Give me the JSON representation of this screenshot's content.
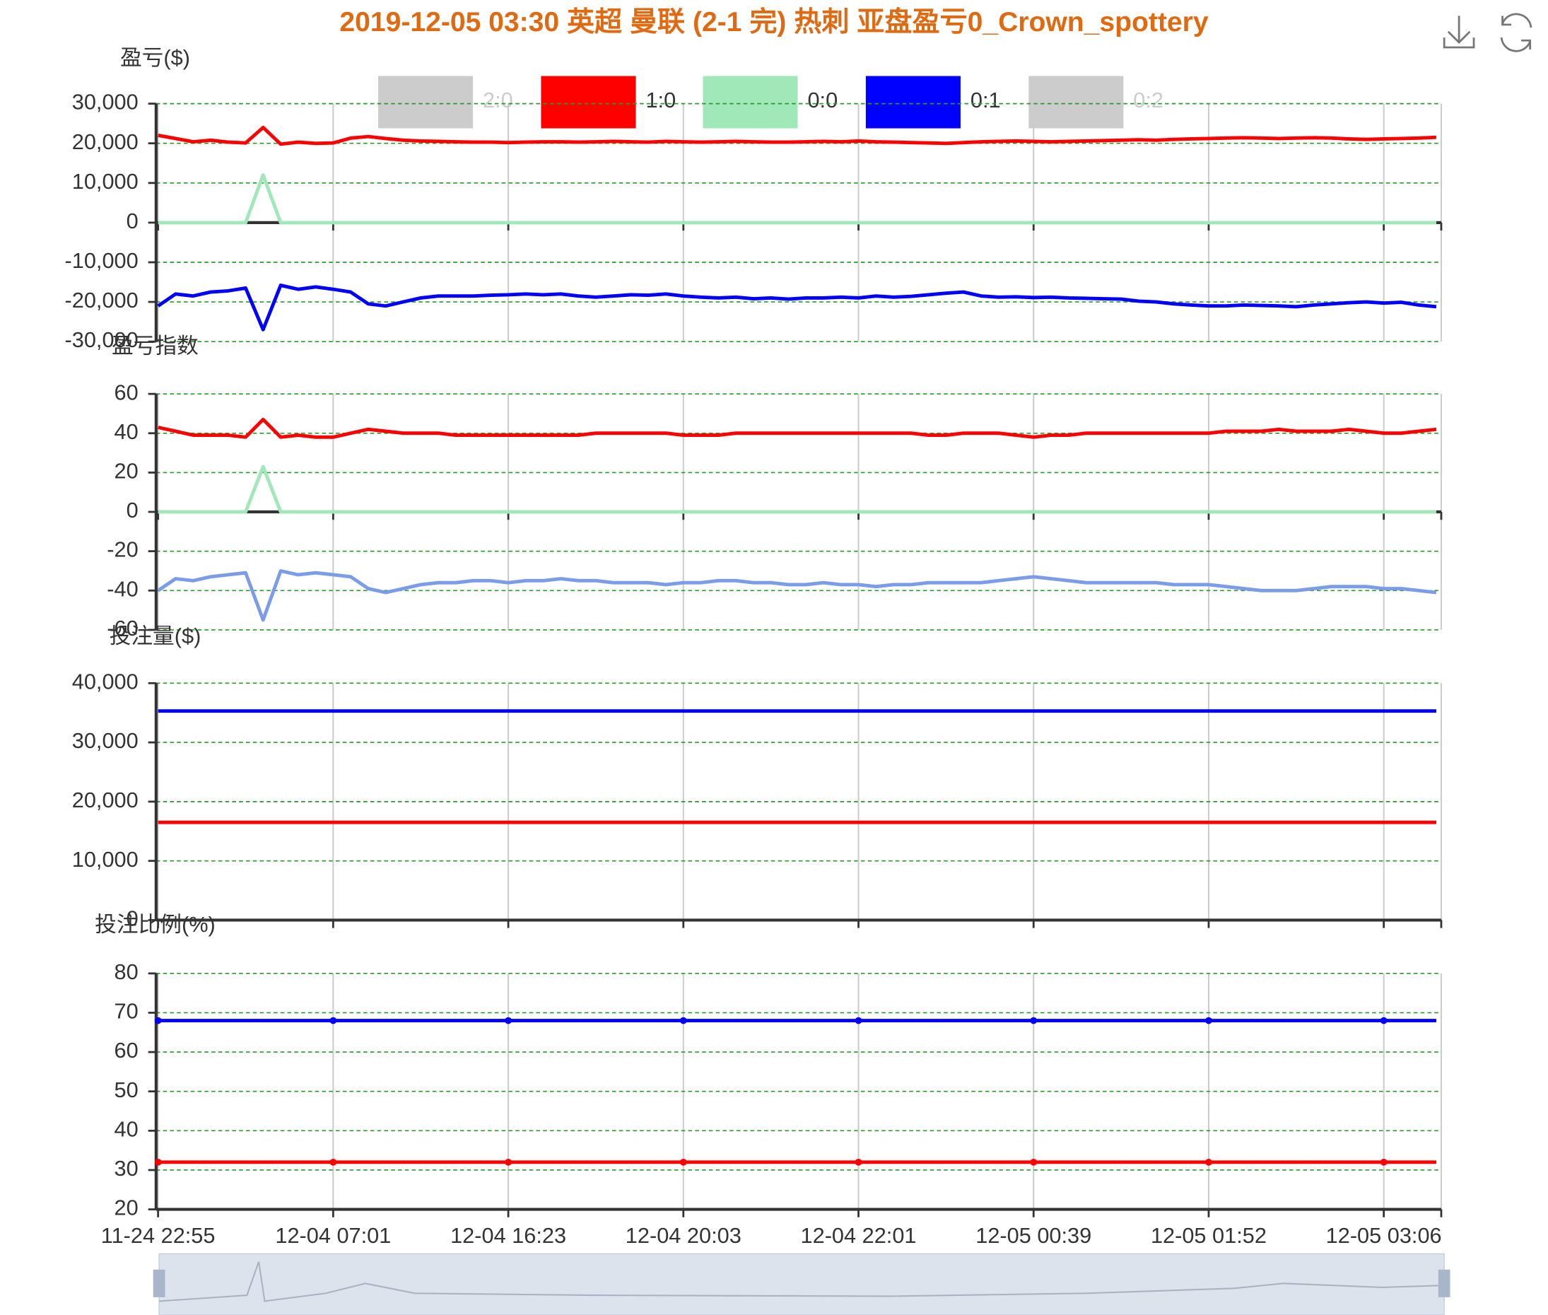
{
  "title": "2019-12-05 03:30 英超 曼联 (2-1 完) 热刺 亚盘盈亏0_Crown_spottery",
  "legend": [
    {
      "name": "2:0",
      "color": "#cccccc",
      "active": false
    },
    {
      "name": "1:0",
      "color": "#ff0000",
      "active": true
    },
    {
      "name": "0:0",
      "color": "#a1e8b9",
      "active": true
    },
    {
      "name": "0:1",
      "color": "#0000ff",
      "active": true
    },
    {
      "name": "0:2",
      "color": "#cccccc",
      "active": false
    }
  ],
  "categories": [
    "11-24 22:55",
    null,
    null,
    null,
    null,
    null,
    null,
    null,
    null,
    null,
    "12-04 07:01",
    null,
    null,
    null,
    null,
    null,
    null,
    null,
    null,
    null,
    "12-04 16:23",
    null,
    null,
    null,
    null,
    null,
    null,
    null,
    null,
    null,
    "12-04 20:03",
    null,
    null,
    null,
    null,
    null,
    null,
    null,
    null,
    null,
    "12-04 22:01",
    null,
    null,
    null,
    null,
    null,
    null,
    null,
    null,
    null,
    "12-05 00:39",
    null,
    null,
    null,
    null,
    null,
    null,
    null,
    null,
    null,
    "12-05 01:52",
    null,
    null,
    null,
    null,
    null,
    null,
    null,
    null,
    null,
    "12-05 03:06",
    null,
    null,
    null
  ],
  "chart_data": [
    {
      "type": "line",
      "ylabel": "盈亏($)",
      "ylim": [
        -30000,
        30000
      ],
      "grid": true,
      "yticks": [
        {
          "value": -30000,
          "label": "-30,000"
        },
        {
          "value": -20000,
          "label": "-20,000"
        },
        {
          "value": -10000,
          "label": "-10,000"
        },
        0,
        {
          "value": 10000,
          "label": "10,000"
        },
        {
          "value": 20000,
          "label": "20,000"
        },
        {
          "value": 30000,
          "label": "30,000"
        }
      ],
      "series": [
        {
          "color": "#ff0000",
          "values": [
            22000,
            21200,
            20400,
            20800,
            20300,
            20100,
            24000,
            19800,
            20300,
            20000,
            20100,
            21300,
            21700,
            21200,
            20800,
            20600,
            20500,
            20400,
            20300,
            20300,
            20200,
            20300,
            20400,
            20400,
            20300,
            20400,
            20500,
            20400,
            20300,
            20500,
            20400,
            20300,
            20400,
            20500,
            20400,
            20300,
            20300,
            20400,
            20500,
            20400,
            20600,
            20400,
            20300,
            20200,
            20100,
            20000,
            20200,
            20400,
            20500,
            20600,
            20500,
            20400,
            20500,
            20600,
            20700,
            20800,
            20900,
            20800,
            21000,
            21100,
            21200,
            21300,
            21400,
            21300,
            21200,
            21300,
            21400,
            21300,
            21100,
            21000,
            21100,
            21200,
            21300,
            21500
          ]
        },
        {
          "color": "#a1e8b9",
          "values": [
            0,
            0,
            0,
            0,
            0,
            0,
            12000,
            0,
            0,
            0,
            0,
            0,
            0,
            0,
            0,
            0,
            0,
            0,
            0,
            0,
            0,
            0,
            0,
            0,
            0,
            0,
            0,
            0,
            0,
            0,
            0,
            0,
            0,
            0,
            0,
            0,
            0,
            0,
            0,
            0,
            0,
            0,
            0,
            0,
            0,
            0,
            0,
            0,
            0,
            0,
            0,
            0,
            0,
            0,
            0,
            0,
            0,
            0,
            0,
            0,
            0,
            0,
            0,
            0,
            0,
            0,
            0,
            0,
            0,
            0,
            0,
            0,
            0,
            0
          ]
        },
        {
          "color": "#0000ff",
          "values": [
            -21000,
            -18000,
            -18500,
            -17500,
            -17200,
            -16500,
            -27000,
            -15800,
            -16800,
            -16200,
            -16800,
            -17500,
            -20500,
            -21000,
            -20000,
            -19000,
            -18500,
            -18500,
            -18500,
            -18300,
            -18200,
            -18000,
            -18200,
            -18000,
            -18500,
            -18800,
            -18500,
            -18200,
            -18300,
            -18000,
            -18500,
            -18800,
            -19000,
            -18800,
            -19200,
            -19000,
            -19300,
            -19000,
            -19000,
            -18800,
            -19000,
            -18500,
            -18800,
            -18600,
            -18200,
            -17800,
            -17500,
            -18500,
            -18800,
            -18700,
            -18900,
            -18800,
            -19000,
            -19100,
            -19200,
            -19300,
            -19800,
            -20000,
            -20500,
            -20800,
            -21000,
            -21000,
            -20800,
            -20900,
            -21000,
            -21200,
            -20800,
            -20500,
            -20200,
            -20000,
            -20300,
            -20100,
            -20800,
            -21200
          ]
        }
      ]
    },
    {
      "type": "line",
      "ylabel": "盈亏指数",
      "ylim": [
        -60,
        60
      ],
      "grid": true,
      "yticks": [
        -60,
        -40,
        -20,
        0,
        20,
        40,
        60
      ],
      "series": [
        {
          "color": "#ff0000",
          "values": [
            43,
            41,
            39,
            39,
            39,
            38,
            47,
            38,
            39,
            38,
            38,
            40,
            42,
            41,
            40,
            40,
            40,
            39,
            39,
            39,
            39,
            39,
            39,
            39,
            39,
            40,
            40,
            40,
            40,
            40,
            39,
            39,
            39,
            40,
            40,
            40,
            40,
            40,
            40,
            40,
            40,
            40,
            40,
            40,
            39,
            39,
            40,
            40,
            40,
            39,
            38,
            39,
            39,
            40,
            40,
            40,
            40,
            40,
            40,
            40,
            40,
            41,
            41,
            41,
            42,
            41,
            41,
            41,
            42,
            41,
            40,
            40,
            41,
            42
          ]
        },
        {
          "color": "#a1e8b9",
          "values": [
            0,
            0,
            0,
            0,
            0,
            0,
            23,
            0,
            0,
            0,
            0,
            0,
            0,
            0,
            0,
            0,
            0,
            0,
            0,
            0,
            0,
            0,
            0,
            0,
            0,
            0,
            0,
            0,
            0,
            0,
            0,
            0,
            0,
            0,
            0,
            0,
            0,
            0,
            0,
            0,
            0,
            0,
            0,
            0,
            0,
            0,
            0,
            0,
            0,
            0,
            0,
            0,
            0,
            0,
            0,
            0,
            0,
            0,
            0,
            0,
            0,
            0,
            0,
            0,
            0,
            0,
            0,
            0,
            0,
            0,
            0,
            0,
            0,
            0
          ]
        },
        {
          "color": "#7b9ce8",
          "values": [
            -40,
            -34,
            -35,
            -33,
            -32,
            -31,
            -55,
            -30,
            -32,
            -31,
            -32,
            -33,
            -39,
            -41,
            -39,
            -37,
            -36,
            -36,
            -35,
            -35,
            -36,
            -35,
            -35,
            -34,
            -35,
            -35,
            -36,
            -36,
            -36,
            -37,
            -36,
            -36,
            -35,
            -35,
            -36,
            -36,
            -37,
            -37,
            -36,
            -37,
            -37,
            -38,
            -37,
            -37,
            -36,
            -36,
            -36,
            -36,
            -35,
            -34,
            -33,
            -34,
            -35,
            -36,
            -36,
            -36,
            -36,
            -36,
            -37,
            -37,
            -37,
            -38,
            -39,
            -40,
            -40,
            -40,
            -39,
            -38,
            -38,
            -38,
            -39,
            -39,
            -40,
            -41
          ]
        }
      ]
    },
    {
      "type": "line",
      "ylabel": "投注量($)",
      "ylim": [
        0,
        40000
      ],
      "grid": true,
      "yticks": [
        0,
        {
          "value": 10000,
          "label": "10,000"
        },
        {
          "value": 20000,
          "label": "20,000"
        },
        {
          "value": 30000,
          "label": "30,000"
        },
        {
          "value": 40000,
          "label": "40,000"
        }
      ],
      "series": [
        {
          "color": "#ff0000",
          "values": [
            16500,
            16500,
            16500,
            16500,
            16500,
            16500,
            16500,
            16500,
            16500,
            16500,
            16500,
            16500,
            16500,
            16500,
            16500,
            16500,
            16500,
            16500,
            16500,
            16500,
            16500,
            16500,
            16500,
            16500,
            16500,
            16500,
            16500,
            16500,
            16500,
            16500,
            16500,
            16500,
            16500,
            16500,
            16500,
            16500,
            16500,
            16500,
            16500,
            16500,
            16500,
            16500,
            16500,
            16500,
            16500,
            16500,
            16500,
            16500,
            16500,
            16500,
            16500,
            16500,
            16500,
            16500,
            16500,
            16500,
            16500,
            16500,
            16500,
            16500,
            16500,
            16500,
            16500,
            16500,
            16500,
            16500,
            16500,
            16500,
            16500,
            16500,
            16500,
            16500,
            16500,
            16500
          ]
        },
        {
          "color": "#0000ff",
          "values": [
            35300,
            35300,
            35300,
            35300,
            35300,
            35300,
            35300,
            35300,
            35300,
            35300,
            35300,
            35300,
            35300,
            35300,
            35300,
            35300,
            35300,
            35300,
            35300,
            35300,
            35300,
            35300,
            35300,
            35300,
            35300,
            35300,
            35300,
            35300,
            35300,
            35300,
            35300,
            35300,
            35300,
            35300,
            35300,
            35300,
            35300,
            35300,
            35300,
            35300,
            35300,
            35300,
            35300,
            35300,
            35300,
            35300,
            35300,
            35300,
            35300,
            35300,
            35300,
            35300,
            35300,
            35300,
            35300,
            35300,
            35300,
            35300,
            35300,
            35300,
            35300,
            35300,
            35300,
            35300,
            35300,
            35300,
            35300,
            35300,
            35300,
            35300,
            35300,
            35300,
            35300,
            35300
          ]
        }
      ]
    },
    {
      "type": "line",
      "ylabel": "投注比例(%)",
      "ylim": [
        20,
        80
      ],
      "grid": true,
      "markers": true,
      "yticks": [
        20,
        30,
        40,
        50,
        60,
        70,
        80
      ],
      "series": [
        {
          "color": "#ff0000",
          "values": [
            32,
            32,
            32,
            32,
            32,
            32,
            32,
            32,
            32,
            32,
            32,
            32,
            32,
            32,
            32,
            32,
            32,
            32,
            32,
            32,
            32,
            32,
            32,
            32,
            32,
            32,
            32,
            32,
            32,
            32,
            32,
            32,
            32,
            32,
            32,
            32,
            32,
            32,
            32,
            32,
            32,
            32,
            32,
            32,
            32,
            32,
            32,
            32,
            32,
            32,
            32,
            32,
            32,
            32,
            32,
            32,
            32,
            32,
            32,
            32,
            32,
            32,
            32,
            32,
            32,
            32,
            32,
            32,
            32,
            32,
            32,
            32,
            32,
            32
          ]
        },
        {
          "color": "#0000ff",
          "values": [
            68,
            68,
            68,
            68,
            68,
            68,
            68,
            68,
            68,
            68,
            68,
            68,
            68,
            68,
            68,
            68,
            68,
            68,
            68,
            68,
            68,
            68,
            68,
            68,
            68,
            68,
            68,
            68,
            68,
            68,
            68,
            68,
            68,
            68,
            68,
            68,
            68,
            68,
            68,
            68,
            68,
            68,
            68,
            68,
            68,
            68,
            68,
            68,
            68,
            68,
            68,
            68,
            68,
            68,
            68,
            68,
            68,
            68,
            68,
            68,
            68,
            68,
            68,
            68,
            68,
            68,
            68,
            68,
            68,
            68,
            68,
            68,
            68,
            68
          ]
        }
      ]
    }
  ]
}
